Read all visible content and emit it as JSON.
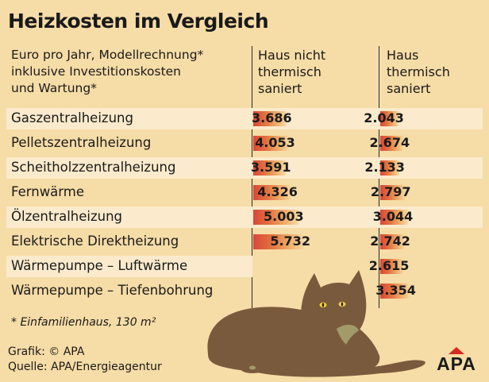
{
  "chart_data": {
    "type": "bar",
    "title": "Heizkosten im Vergleich",
    "subtitle": "Euro pro Jahr, Modellrechnung*\ninklusive Investitionskosten\nund Wartung*",
    "categories": [
      "Gaszentralheizung",
      "Pelletszentralheizung",
      "Scheitholzzentralheizung",
      "Fernwärme",
      "Ölzentralheizung",
      "Elektrische Direktheizung",
      "Wärmepumpe – Luftwärme",
      "Wärmepumpe – Tiefenbohrung"
    ],
    "series": [
      {
        "name": "Haus nicht\nthermisch\nsaniert",
        "values": [
          3686,
          4053,
          3591,
          4326,
          5003,
          5732,
          null,
          null
        ],
        "labels": [
          "3.686",
          "4.053",
          "3.591",
          "4.326",
          "5.003",
          "5.732",
          "",
          ""
        ]
      },
      {
        "name": "Haus\nthermisch\nsaniert",
        "values": [
          2043,
          2674,
          2133,
          2797,
          3044,
          2742,
          2615,
          3354
        ],
        "labels": [
          "2.043",
          "2.674",
          "2.133",
          "2.797",
          "3.044",
          "2.742",
          "2.615",
          "3.354"
        ]
      }
    ],
    "legend": "none",
    "grid": false,
    "colors": {
      "bar_start": "#d8473a",
      "bar_end": "#f6dca6",
      "background": "#f6dca6",
      "row_shade": "#fbeacc"
    }
  },
  "footnote": "* Einfamilienhaus, 130 m²",
  "credits": "Grafik: © APA\nQuelle: APA/Energieagentur",
  "logo": {
    "text": "APA",
    "accent": "#d42a22"
  },
  "illustration": {
    "name": "cat-illustration",
    "body_color": "#7a5a3c",
    "eye_color": "#f2cf3a",
    "patch_color": "#a39a6a"
  }
}
